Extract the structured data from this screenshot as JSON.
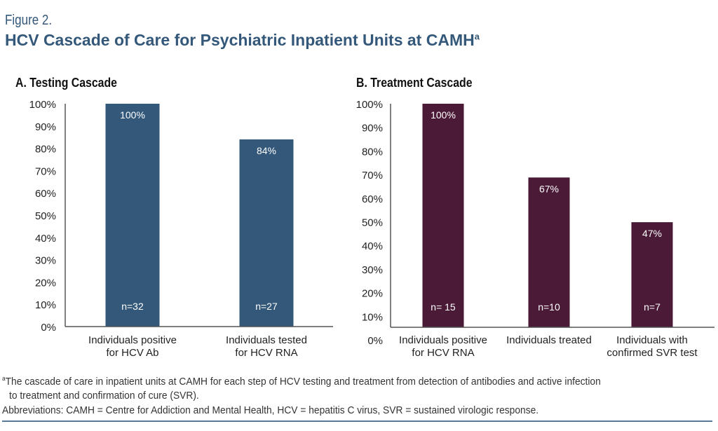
{
  "figure_label": "Figure 2.",
  "figure_title": "HCV Cascade of Care for Psychiatric Inpatient Units at CAMH",
  "figure_title_sup": "a",
  "colors": {
    "title": "#34587a",
    "panel_a_bar": "#33587a",
    "panel_b_bar": "#4a1a37",
    "axis": "#555555"
  },
  "chart_data": [
    {
      "type": "bar",
      "title": "A. Testing Cascade",
      "categories": [
        [
          "Individuals positive",
          "for HCV Ab"
        ],
        [
          "Individuals tested",
          "for HCV RNA"
        ]
      ],
      "values": [
        100,
        84
      ],
      "value_labels": [
        "100%",
        "84%"
      ],
      "n_labels": [
        "n=32",
        "n=27"
      ],
      "ylim": [
        0,
        100
      ],
      "yticks": [
        "0%",
        "10%",
        "20%",
        "30%",
        "40%",
        "50%",
        "60%",
        "70%",
        "80%",
        "90%",
        "100%"
      ],
      "xlabel": "",
      "ylabel": "",
      "grid": false,
      "color": "#33587a"
    },
    {
      "type": "bar",
      "title": "B. Treatment Cascade",
      "categories": [
        [
          "Individuals positive",
          "for HCV RNA"
        ],
        [
          "Individuals treated"
        ],
        [
          "Individuals with",
          "confirmed SVR test"
        ]
      ],
      "values": [
        100,
        67,
        47
      ],
      "value_labels": [
        "100%",
        "67%",
        "47%"
      ],
      "n_labels": [
        "n= 15",
        "n=10",
        "n=7"
      ],
      "ylim": [
        0,
        100
      ],
      "yticks": [
        "0%",
        "10%",
        "20%",
        "30%",
        "40%",
        "50%",
        "60%",
        "70%",
        "80%",
        "90%",
        "100%"
      ],
      "xlabel": "",
      "ylabel": "",
      "grid": false,
      "color": "#4a1a37"
    }
  ],
  "footnotes": {
    "note_sup": "a",
    "note_line1": "The cascade of care in inpatient units at CAMH for each step of HCV testing and treatment from detection of antibodies and active infection",
    "note_line2": "to treatment and confirmation of cure (SVR).",
    "abbreviations": "Abbreviations: CAMH = Centre for Addiction and Mental Health, HCV = hepatitis C virus, SVR = sustained virologic response."
  }
}
